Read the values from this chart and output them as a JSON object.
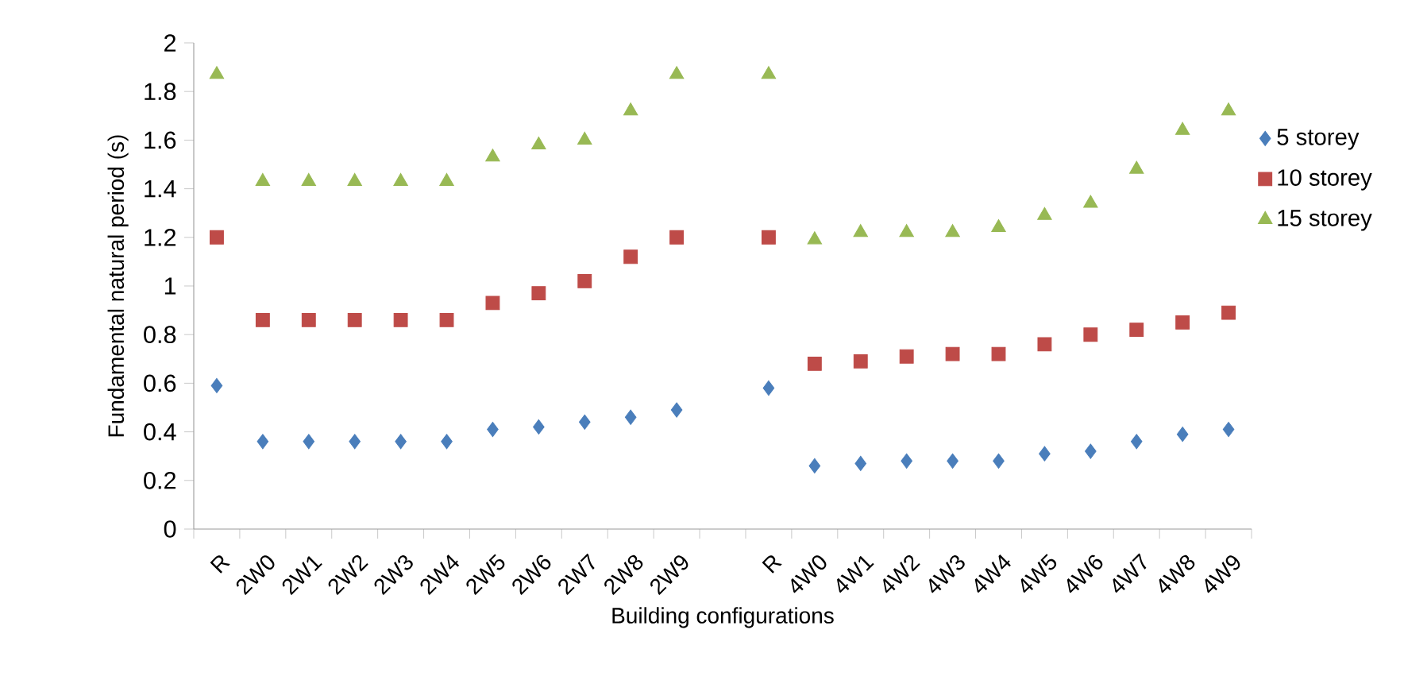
{
  "chart_data": {
    "type": "scatter",
    "xlabel": "Building configurations",
    "ylabel": "Fundamental natural period (s)",
    "categories": [
      "R",
      "2W0",
      "2W1",
      "2W2",
      "2W3",
      "2W4",
      "2W5",
      "2W6",
      "2W7",
      "2W8",
      "2W9",
      null,
      "R",
      "4W0",
      "4W1",
      "4W2",
      "4W3",
      "4W4",
      "4W5",
      "4W6",
      "4W7",
      "4W8",
      "4W9"
    ],
    "series": [
      {
        "name": "5 storey",
        "color": "#4a7ebb",
        "marker": "diamond",
        "values": [
          0.59,
          0.36,
          0.36,
          0.36,
          0.36,
          0.36,
          0.41,
          0.42,
          0.44,
          0.46,
          0.49,
          null,
          0.58,
          0.26,
          0.27,
          0.28,
          0.28,
          0.28,
          0.31,
          0.32,
          0.36,
          0.39,
          0.41
        ]
      },
      {
        "name": "10 storey",
        "color": "#be4b48",
        "marker": "square",
        "values": [
          1.2,
          0.86,
          0.86,
          0.86,
          0.86,
          0.86,
          0.93,
          0.97,
          1.02,
          1.12,
          1.2,
          null,
          1.2,
          0.68,
          0.69,
          0.71,
          0.72,
          0.72,
          0.76,
          0.8,
          0.82,
          0.85,
          0.89
        ]
      },
      {
        "name": "15 storey",
        "color": "#98b954",
        "marker": "triangle",
        "values": [
          1.87,
          1.43,
          1.43,
          1.43,
          1.43,
          1.43,
          1.53,
          1.58,
          1.6,
          1.72,
          1.87,
          null,
          1.87,
          1.19,
          1.22,
          1.22,
          1.22,
          1.24,
          1.29,
          1.34,
          1.48,
          1.64,
          1.72
        ]
      }
    ],
    "ylim": [
      0,
      2
    ],
    "yticks": [
      0,
      0.2,
      0.4,
      0.6,
      0.8,
      1,
      1.2,
      1.4,
      1.6,
      1.8,
      2
    ],
    "grid": false,
    "legend": "right"
  }
}
